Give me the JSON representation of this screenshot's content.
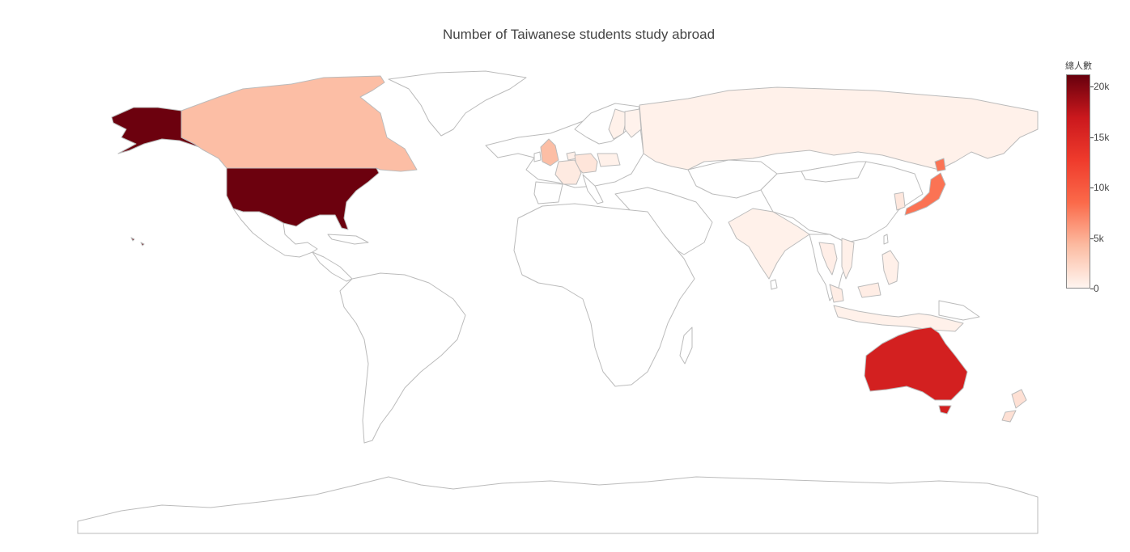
{
  "title": "Number of Taiwanese students study abroad",
  "colorbar": {
    "title": "總人數",
    "ticks": [
      "20k",
      "15k",
      "10k",
      "5k",
      "0"
    ],
    "tick_values": [
      20000,
      15000,
      10000,
      5000,
      0
    ],
    "range": [
      0,
      21200
    ],
    "colorscale": [
      "#fff5f0",
      "#fcbba1",
      "#fb6a4a",
      "#ef3b2c",
      "#cb181d",
      "#67000d"
    ]
  },
  "chart_data": {
    "type": "choropleth",
    "title": "Number of Taiwanese students study abroad",
    "colorbar_title": "總人數",
    "zrange": [
      0,
      21200
    ],
    "locations": [
      {
        "country": "United States",
        "value": 21000
      },
      {
        "country": "Australia",
        "value": 16000
      },
      {
        "country": "Japan",
        "value": 8000
      },
      {
        "country": "Canada",
        "value": 4000
      },
      {
        "country": "United Kingdom",
        "value": 4000
      },
      {
        "country": "New Zealand",
        "value": 1500
      },
      {
        "country": "Germany",
        "value": 1200
      },
      {
        "country": "France",
        "value": 800
      },
      {
        "country": "Netherlands",
        "value": 400
      },
      {
        "country": "Russia",
        "value": 300
      },
      {
        "country": "India",
        "value": 300
      },
      {
        "country": "Thailand",
        "value": 500
      },
      {
        "country": "Vietnam",
        "value": 400
      },
      {
        "country": "Malaysia",
        "value": 600
      },
      {
        "country": "Indonesia",
        "value": 300
      },
      {
        "country": "Philippines",
        "value": 400
      },
      {
        "country": "South Korea",
        "value": 1000
      },
      {
        "country": "Sweden",
        "value": 300
      },
      {
        "country": "Finland",
        "value": 200
      },
      {
        "country": "Poland",
        "value": 300
      }
    ]
  }
}
